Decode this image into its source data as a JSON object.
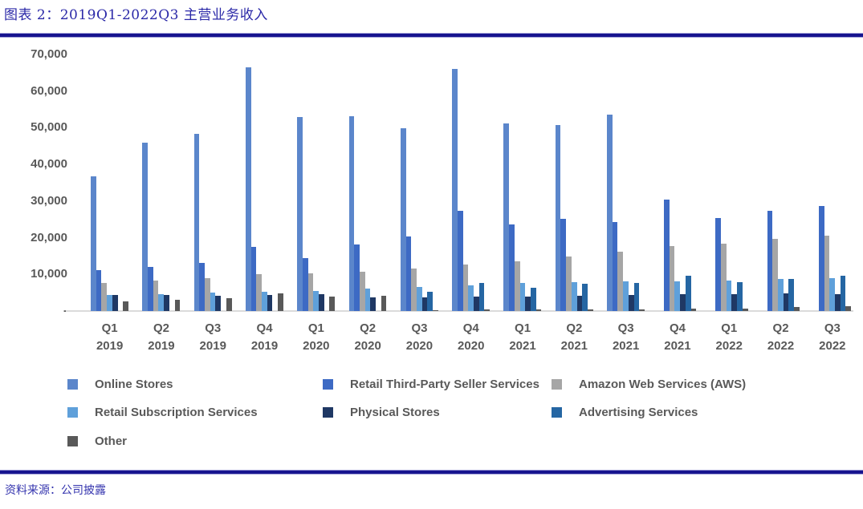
{
  "header": {
    "title": "图表 2：2019Q1-2022Q3 主营业务收入"
  },
  "footer": {
    "source": "资料来源：公司披露"
  },
  "colors": {
    "title_text": "#2B29A8",
    "divider_navy": "#17148F",
    "axis_text": "#595959",
    "baseline": "#DBDBDB"
  },
  "chart_data": {
    "type": "bar",
    "title": "图表 2：2019Q1-2022Q3 主营业务收入",
    "xlabel": "",
    "ylabel": "",
    "ylim": [
      0,
      70000
    ],
    "y_tick_labels": [
      "70,000",
      "60,000",
      "50,000",
      "40,000",
      "30,000",
      "20,000",
      "10,000",
      "-"
    ],
    "grid": false,
    "legend_position": "bottom",
    "categories": [
      "Q1 2019",
      "Q2 2019",
      "Q3 2019",
      "Q4 2019",
      "Q1 2020",
      "Q2 2020",
      "Q3 2020",
      "Q4 2020",
      "Q1 2021",
      "Q2 2021",
      "Q3 2021",
      "Q4 2021",
      "Q1 2022",
      "Q2 2022",
      "Q3 2022"
    ],
    "categories_line1": [
      "Q1",
      "Q2",
      "Q3",
      "Q4",
      "Q1",
      "Q2",
      "Q3",
      "Q4",
      "Q1",
      "Q2",
      "Q3",
      "Q4",
      "Q1",
      "Q2",
      "Q3"
    ],
    "categories_line2": [
      "2019",
      "2019",
      "2019",
      "2019",
      "2020",
      "2020",
      "2020",
      "2020",
      "2021",
      "2021",
      "2021",
      "2021",
      "2022",
      "2022",
      "2022"
    ],
    "series": [
      {
        "name": "Online Stores",
        "color": "#5B86CB",
        "values": [
          36652,
          45896,
          48350,
          66451,
          52901,
          53157,
          49942,
          66075,
          51129,
          50855,
          53489,
          0,
          0,
          0,
          0
        ]
      },
      {
        "name": "Retail Third-Party Seller Services",
        "color": "#3D6AC4",
        "values": [
          11137,
          11962,
          13212,
          17446,
          14479,
          18195,
          20436,
          27327,
          23709,
          25085,
          24252,
          30320,
          25335,
          27376,
          28666
        ]
      },
      {
        "name": "Amazon Web Services (AWS)",
        "color": "#A6A6A6",
        "values": [
          7696,
          8381,
          8995,
          9954,
          10219,
          10808,
          11601,
          12742,
          13503,
          14809,
          16110,
          17780,
          18441,
          19739,
          20538
        ]
      },
      {
        "name": "Retail Subscription Services",
        "color": "#5FA0DA",
        "values": [
          4342,
          4676,
          4957,
          5235,
          5556,
          6018,
          6572,
          7061,
          7580,
          7917,
          8148,
          8123,
          8410,
          8716,
          8903
        ]
      },
      {
        "name": "Physical Stores",
        "color": "#1F3864",
        "values": [
          4307,
          4330,
          4192,
          4363,
          4640,
          3774,
          3788,
          4022,
          3920,
          4198,
          4269,
          4688,
          4591,
          4721,
          4694
        ]
      },
      {
        "name": "Advertising Services",
        "color": "#2566A3",
        "values": [
          0,
          0,
          0,
          0,
          0,
          0,
          5175,
          7572,
          6381,
          7451,
          7612,
          9716,
          7877,
          8757,
          9548
        ]
      },
      {
        "name": "Other",
        "color": "#595959",
        "values": [
          2716,
          3002,
          3586,
          4809,
          3906,
          4221,
          223,
          382,
          524,
          466,
          511,
          710,
          661,
          1081,
          1278
        ]
      }
    ],
    "legend_rows": [
      [
        0,
        1,
        2
      ],
      [
        3,
        4,
        5
      ],
      [
        6
      ]
    ]
  }
}
